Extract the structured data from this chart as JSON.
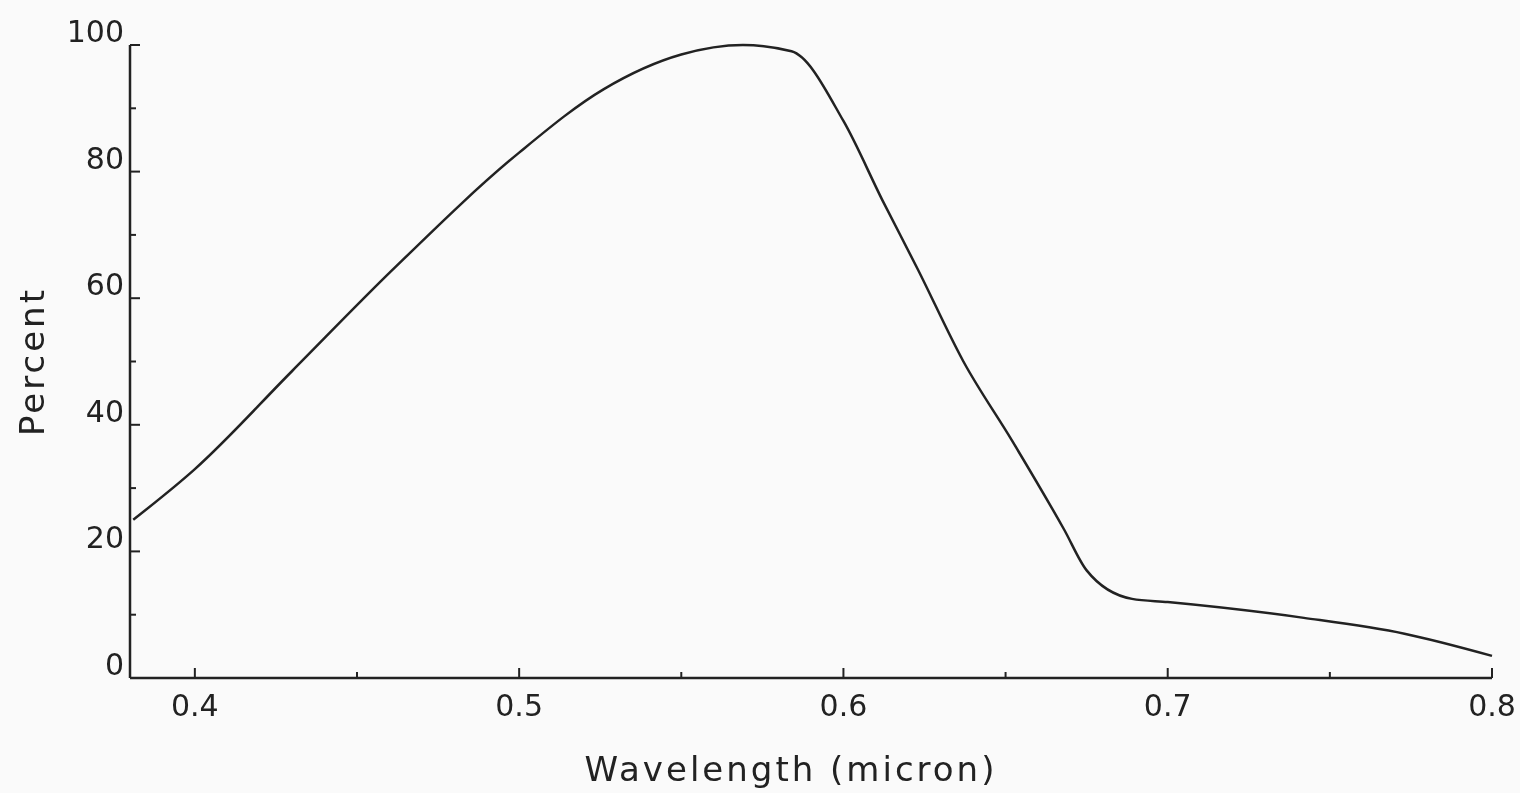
{
  "chart_data": {
    "type": "line",
    "xlabel": "Wavelength (micron)",
    "ylabel": "Percent",
    "x": [
      0.381,
      0.4,
      0.43,
      0.461,
      0.5,
      0.526,
      0.55,
      0.569,
      0.584,
      0.6,
      0.612,
      0.623,
      0.637,
      0.652,
      0.668,
      0.675,
      0.689,
      0.7,
      0.742,
      0.773,
      0.8
    ],
    "series": [
      {
        "color": "#222222",
        "values": [
          25,
          33,
          48.5,
          64.5,
          83,
          93,
          98.5,
          100,
          99,
          88,
          75.5,
          64.5,
          50,
          37.5,
          23.5,
          17,
          12.5,
          12,
          9.5,
          7,
          3.5
        ]
      }
    ],
    "xlim": [
      0.38,
      0.8
    ],
    "xticks": [
      0.4,
      {
        "value": 0.45,
        "label": null
      },
      0.5,
      {
        "value": 0.55,
        "label": null
      },
      0.6,
      {
        "value": 0.65,
        "label": null
      },
      0.7,
      {
        "value": 0.75,
        "label": null
      },
      0.8
    ],
    "ylim": [
      0,
      100
    ],
    "yticks": [
      0,
      {
        "value": 10,
        "label": null
      },
      20,
      {
        "value": 30,
        "label": null
      },
      40,
      {
        "value": 50,
        "label": null
      },
      60,
      {
        "value": 70,
        "label": null
      },
      80,
      {
        "value": 90,
        "label": null
      },
      100
    ],
    "grid": false,
    "marker": "none",
    "line_style": "solid"
  }
}
